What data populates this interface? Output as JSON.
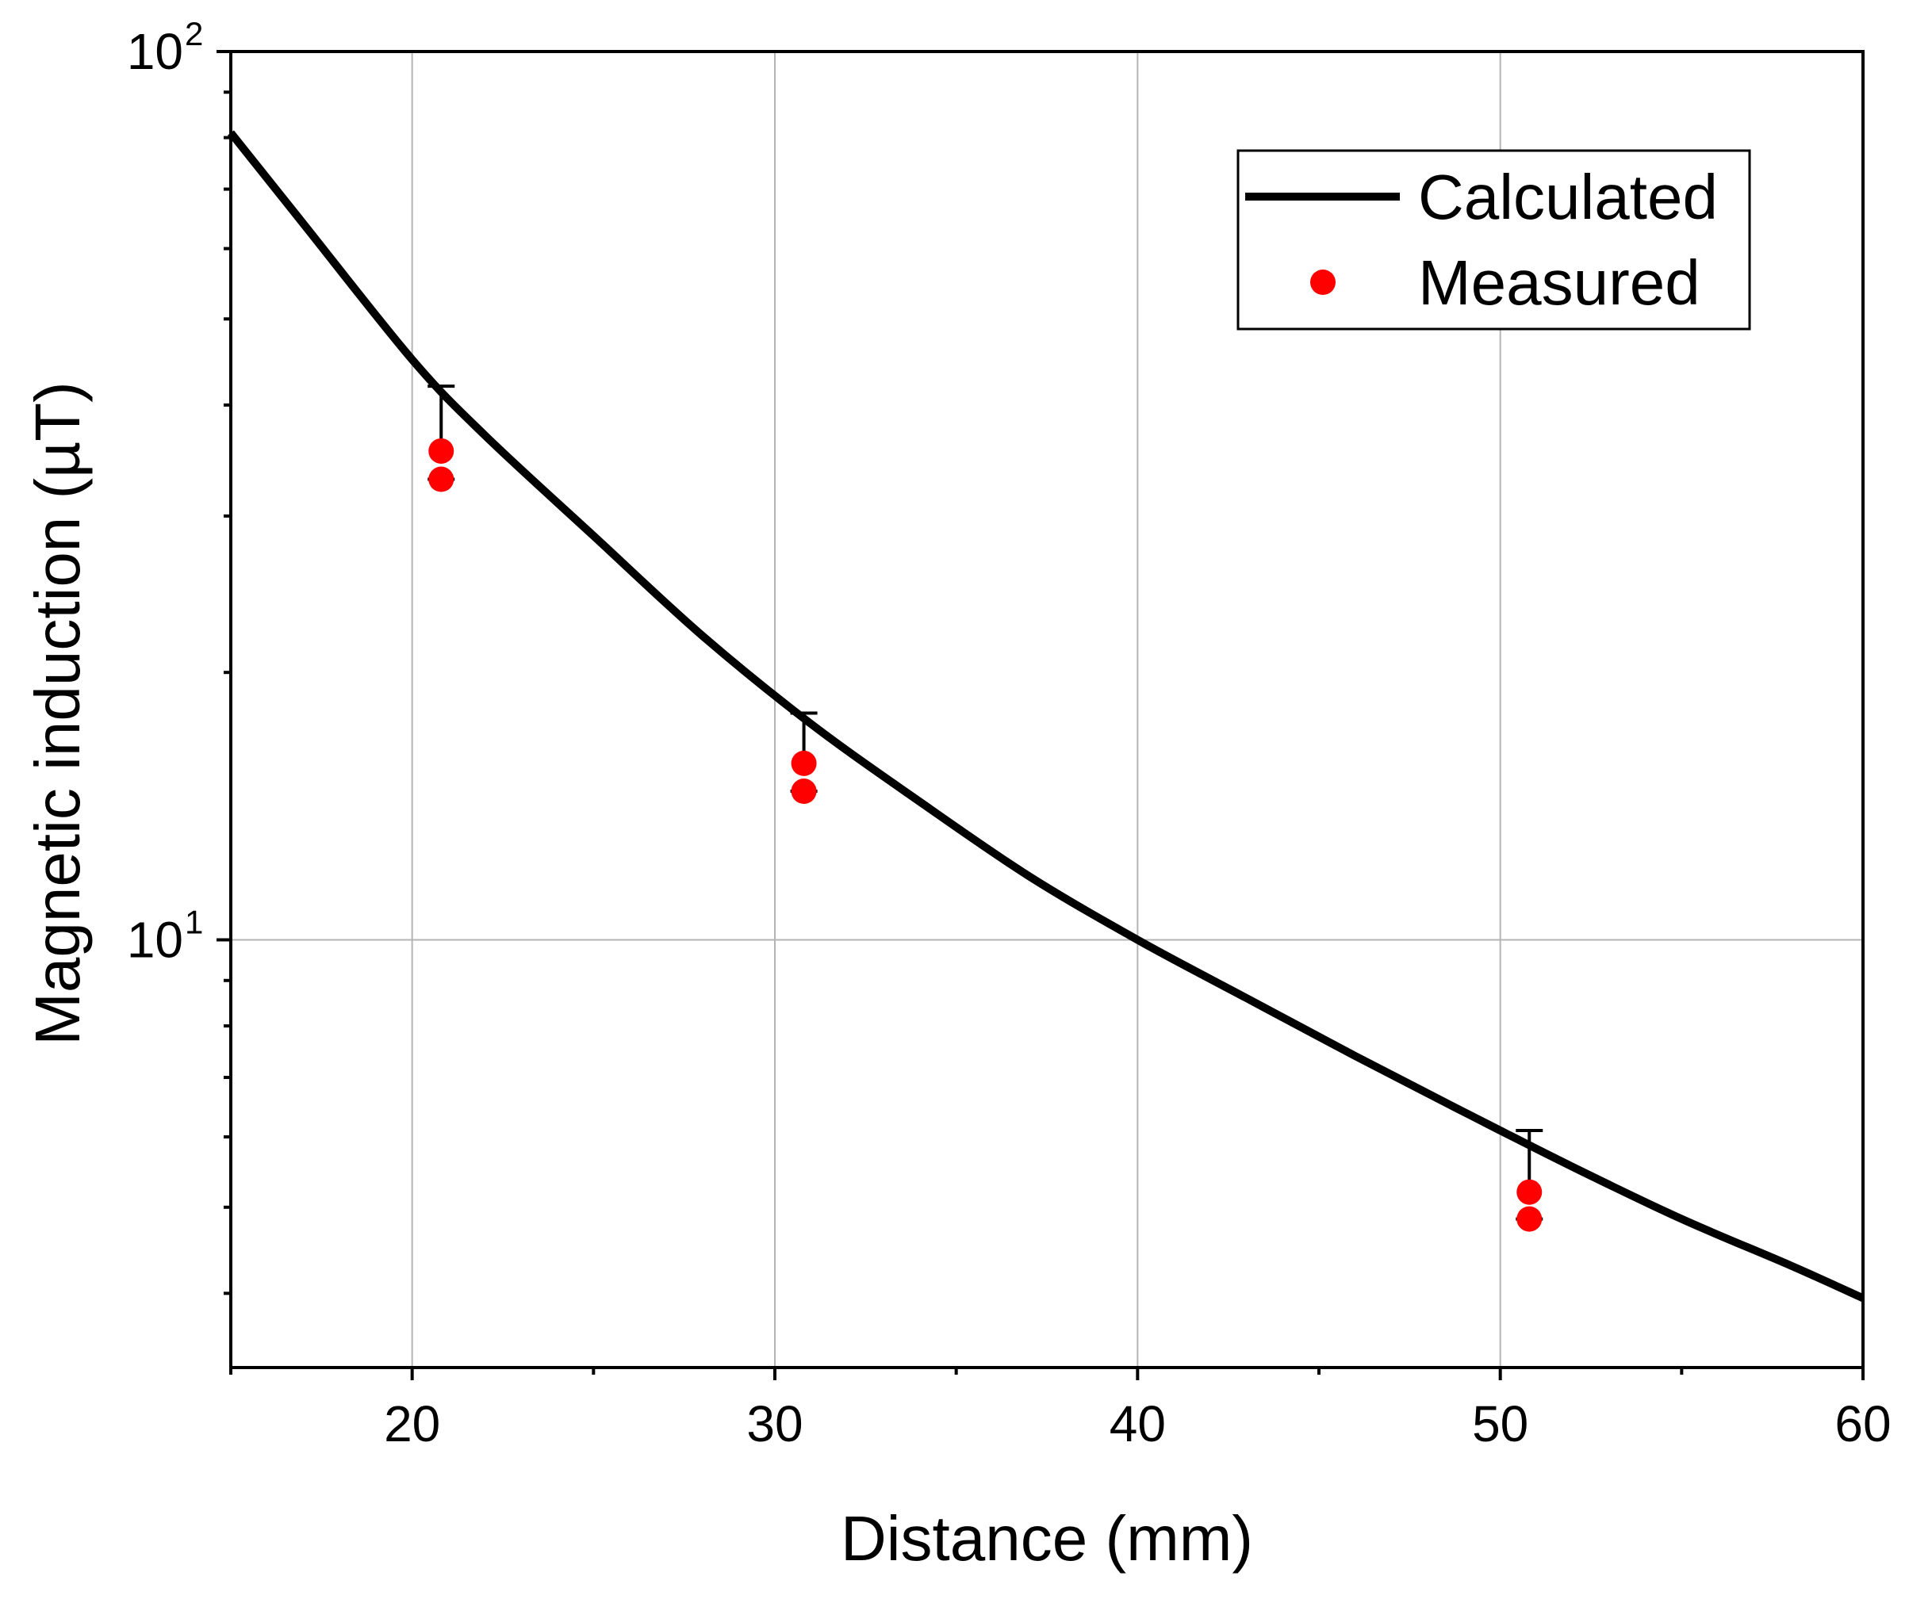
{
  "chart_data": {
    "type": "line",
    "title": "",
    "xlabel": "Distance (mm)",
    "ylabel": "Magnetic induction (µT)",
    "xlim": [
      15,
      60
    ],
    "ylim": [
      3.3,
      100
    ],
    "yscale": "log",
    "grid": true,
    "legend_position": "top-right",
    "x_ticks": [
      {
        "value": 20,
        "label": "20"
      },
      {
        "value": 30,
        "label": "30"
      },
      {
        "value": 40,
        "label": "40"
      },
      {
        "value": 50,
        "label": "50"
      },
      {
        "value": 60,
        "label": "60"
      }
    ],
    "x_minor_ticks": [
      15,
      25,
      35,
      45,
      55
    ],
    "y_ticks": [
      {
        "value": 10,
        "base": "10",
        "exp": "1"
      },
      {
        "value": 100,
        "base": "10",
        "exp": "2"
      }
    ],
    "series": [
      {
        "name": "Calculated",
        "kind": "line",
        "color": "#000000",
        "x": [
          15,
          17,
          20,
          22,
          25,
          28,
          31,
          34,
          37,
          40,
          43,
          46,
          49,
          52,
          55,
          58,
          60
        ],
        "y": [
          81,
          64,
          45,
          37,
          28.5,
          22,
          17.5,
          14.3,
          11.8,
          10.0,
          8.6,
          7.4,
          6.4,
          5.55,
          4.85,
          4.3,
          3.95
        ]
      },
      {
        "name": "Measured",
        "kind": "scatter",
        "color": "#ff0000",
        "x": [
          20.8,
          20.8,
          30.8,
          30.8,
          50.8,
          50.8
        ],
        "y": [
          35.5,
          33.0,
          15.8,
          14.7,
          5.2,
          4.85
        ],
        "error_upper": [
          {
            "x": 20.8,
            "from": 35.5,
            "to": 42.0
          },
          {
            "x": 30.8,
            "from": 15.8,
            "to": 18.0
          },
          {
            "x": 50.8,
            "from": 5.2,
            "to": 6.1
          }
        ],
        "error_lower_caps": [
          {
            "x": 20.8,
            "y": 33.0
          },
          {
            "x": 30.8,
            "y": 14.7
          },
          {
            "x": 50.8,
            "y": 4.85
          }
        ]
      }
    ]
  }
}
